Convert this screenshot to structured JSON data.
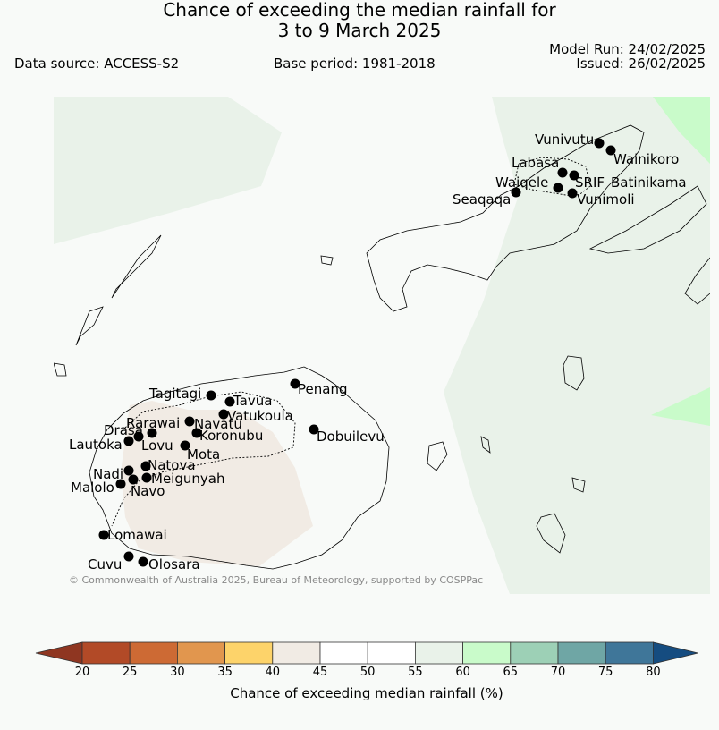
{
  "title_line1": "Chance of exceeding the median rainfall for",
  "title_line2": "3 to 9 March 2025",
  "data_source": "Data source: ACCESS-S2",
  "base_period": "Base period: 1981-2018",
  "model_run": "Model Run: 24/02/2025",
  "issued": "Issued: 26/02/2025",
  "copyright": "© Commonwealth of Australia 2025, Bureau of Meteorology, supported by COSPPac",
  "colorbar": {
    "label": "Chance of exceeding median rainfall (%)",
    "ticks": [
      "20",
      "25",
      "30",
      "35",
      "40",
      "45",
      "50",
      "55",
      "60",
      "65",
      "70",
      "75",
      "80"
    ],
    "colors": [
      "#b24a27",
      "#cd6a34",
      "#e1964e",
      "#fdd36a",
      "#f1ebe4",
      "#ffffff",
      "#ffffff",
      "#e9f2e9",
      "#c9fbca",
      "#9dd0b6",
      "#6fa6a5",
      "#3f7699"
    ],
    "low_extend_color": "#8f3621",
    "high_extend_color": "#154c80"
  },
  "places": [
    {
      "name": "Vunivutu"
    },
    {
      "name": "Wainikoro"
    },
    {
      "name": "Labasa"
    },
    {
      "name": "Waiqele"
    },
    {
      "name": "SRIF"
    },
    {
      "name": "Batinikama"
    },
    {
      "name": "Seaqaqa"
    },
    {
      "name": "Vunimoli"
    },
    {
      "name": "Penang"
    },
    {
      "name": "Tagitagi"
    },
    {
      "name": "Tavua"
    },
    {
      "name": "Vatukoula"
    },
    {
      "name": "Rarawai"
    },
    {
      "name": "Navatu"
    },
    {
      "name": "Drasa"
    },
    {
      "name": "Koronubu"
    },
    {
      "name": "Lautoka"
    },
    {
      "name": "Lovu"
    },
    {
      "name": "Mota"
    },
    {
      "name": "Dobuilevu"
    },
    {
      "name": "Natova"
    },
    {
      "name": "Nadi"
    },
    {
      "name": "Meigunyah"
    },
    {
      "name": "Malolo"
    },
    {
      "name": "Navo"
    },
    {
      "name": "Lomawai"
    },
    {
      "name": "Cuvu"
    },
    {
      "name": "Olosara"
    }
  ]
}
